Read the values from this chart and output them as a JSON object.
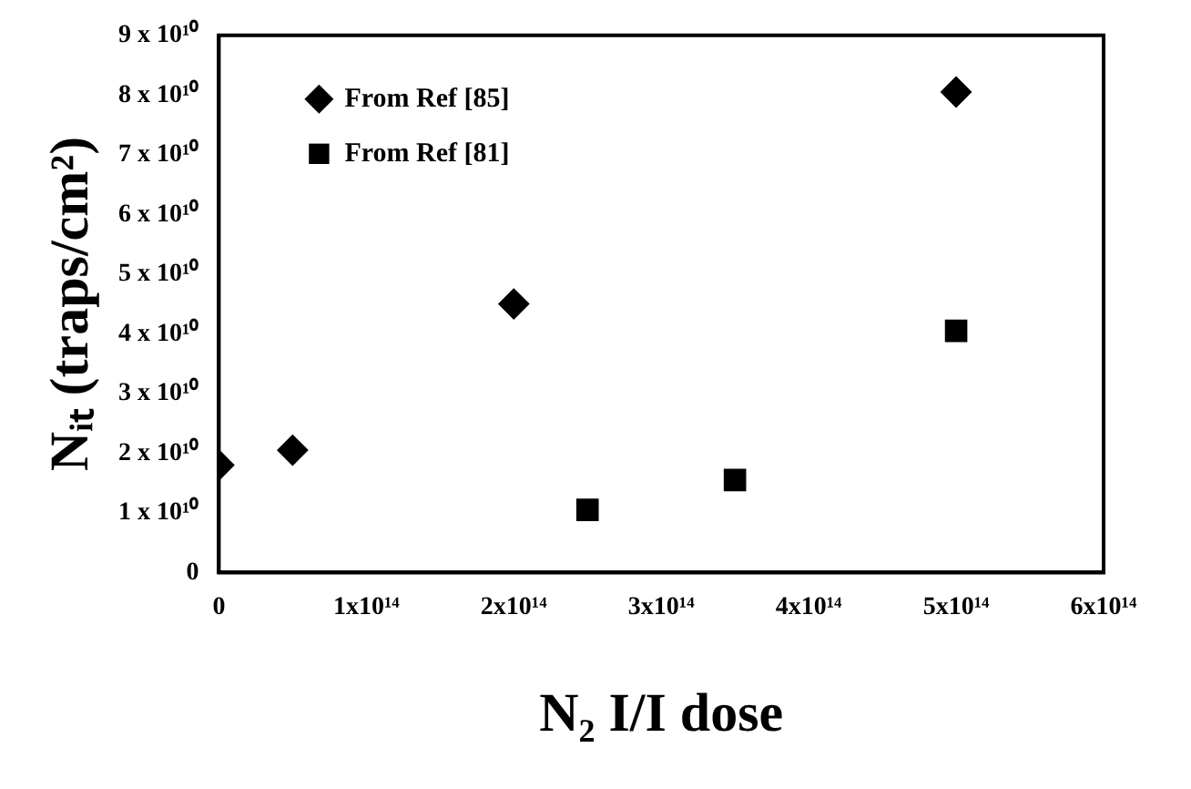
{
  "chart_data": {
    "type": "scatter",
    "xlabel": "N₂ I/I dose",
    "ylabel": "Nᵢₜ (traps/cm²)",
    "series": [
      {
        "name": "From Ref [85]",
        "color": "#000000",
        "marker": "diamond",
        "x": [
          0,
          50000000000000.0,
          200000000000000.0,
          500000000000000.0
        ],
        "values": [
          18000000000.0,
          20500000000.0,
          45000000000.0,
          80500000000.0
        ]
      },
      {
        "name": "From Ref [81]",
        "color": "#000000",
        "marker": "square",
        "x": [
          250000000000000.0,
          350000000000000.0,
          500000000000000.0
        ],
        "values": [
          10500000000.0,
          15500000000.0,
          40500000000.0
        ]
      }
    ],
    "xlim": [
      0,
      600000000000000.0
    ],
    "xticks": [
      0,
      {
        "value": 100000000000000.0,
        "label": "1x10¹⁴"
      },
      {
        "value": 200000000000000.0,
        "label": "2x10¹⁴"
      },
      {
        "value": 300000000000000.0,
        "label": "3x10¹⁴"
      },
      {
        "value": 400000000000000.0,
        "label": "4x10¹⁴"
      },
      {
        "value": 500000000000000.0,
        "label": "5x10¹⁴"
      },
      {
        "value": 600000000000000.0,
        "label": "6x10¹⁴"
      }
    ],
    "ylim": [
      0,
      90000000000.0
    ],
    "yticks": [
      0,
      {
        "value": 10000000000.0,
        "label": "1 x 10¹⁰"
      },
      {
        "value": 20000000000.0,
        "label": "2 x 10¹⁰"
      },
      {
        "value": 30000000000.0,
        "label": "3 x 10¹⁰"
      },
      {
        "value": 40000000000.0,
        "label": "4 x 10¹⁰"
      },
      {
        "value": 50000000000.0,
        "label": "5 x 10¹⁰"
      },
      {
        "value": 60000000000.0,
        "label": "6 x 10¹⁰"
      },
      {
        "value": 70000000000.0,
        "label": "7 x 10¹⁰"
      },
      {
        "value": 80000000000.0,
        "label": "8 x 10¹⁰"
      },
      {
        "value": 90000000000.0,
        "label": "9 x 10¹⁰"
      }
    ],
    "grid": false,
    "legend": "top left"
  }
}
